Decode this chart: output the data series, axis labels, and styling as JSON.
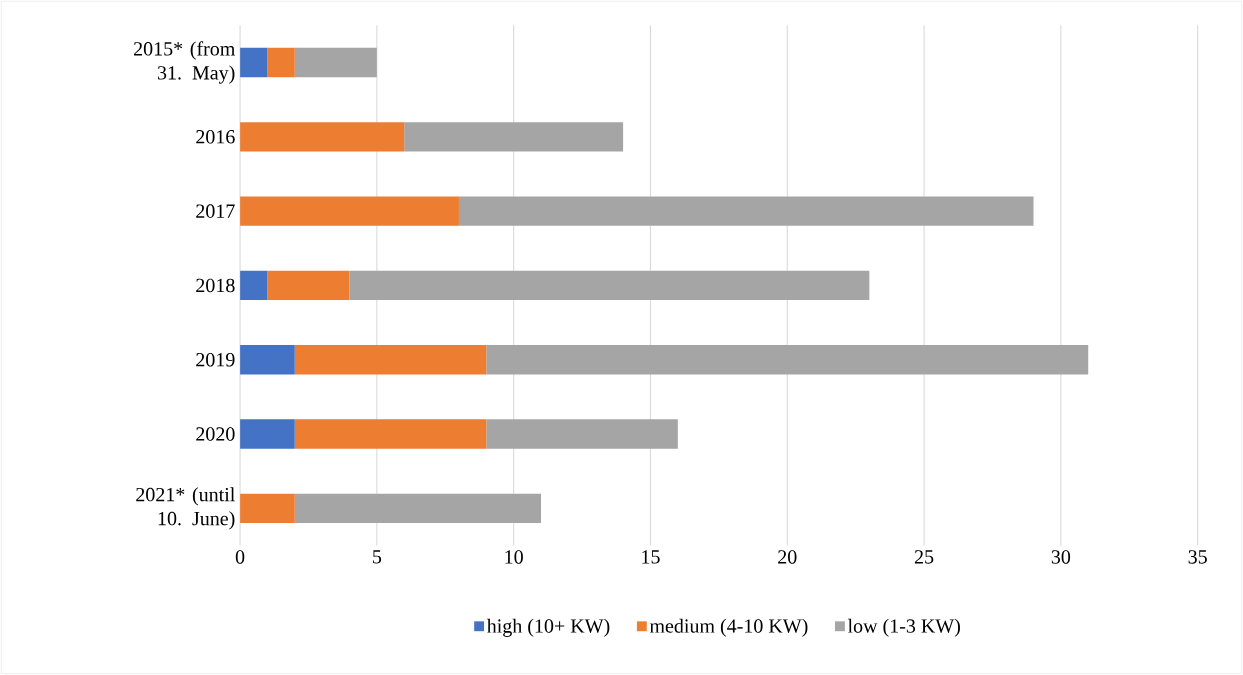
{
  "chart_data": {
    "type": "bar",
    "orientation": "horizontal",
    "stacked": true,
    "categories": [
      "2015* (from 31. May)",
      "2016",
      "2017",
      "2018",
      "2019",
      "2020",
      "2021* (until 10. June)"
    ],
    "series": [
      {
        "name": "high (10+ KW)",
        "color": "#4472c4",
        "values": [
          1,
          0,
          0,
          1,
          2,
          2,
          0
        ]
      },
      {
        "name": "medium (4-10 KW)",
        "color": "#ed7d31",
        "values": [
          1,
          6,
          8,
          3,
          7,
          7,
          2
        ]
      },
      {
        "name": "low (1-3 KW)",
        "color": "#a5a5a5",
        "values": [
          3,
          8,
          21,
          19,
          22,
          7,
          9
        ]
      }
    ],
    "xlim": [
      0,
      35
    ],
    "xticks": [
      0,
      5,
      10,
      15,
      20,
      25,
      30,
      35
    ],
    "grid": "x",
    "legend": "bottom"
  }
}
